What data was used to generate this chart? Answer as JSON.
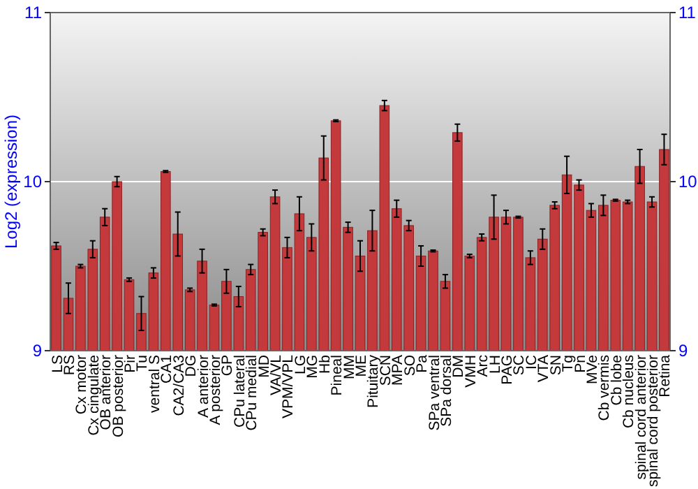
{
  "chart_data": {
    "type": "bar",
    "ylabel": "Log2 (expression)",
    "categories": [
      "LS",
      "RS",
      "Cx motor",
      "Cx cingulate",
      "OB anterior",
      "OB posterior",
      "Pir",
      "Tu",
      "ventral S",
      "CA1",
      "CA2/CA3",
      "DG",
      "A anterior",
      "A posterior",
      "GP",
      "CPu lateral",
      "CPu medial",
      "MD",
      "VA/VL",
      "VPM/VPL",
      "LG",
      "MG",
      "Hb",
      "Pineal",
      "MM",
      "ME",
      "Pituitary",
      "SCN",
      "MPA",
      "SO",
      "Pa",
      "SPa ventral",
      "SPa dorsal",
      "DM",
      "VMH",
      "Arc",
      "LH",
      "PAG",
      "SC",
      "IC",
      "VTA",
      "SN",
      "Tg",
      "Pn",
      "MVe",
      "Cb vermis",
      "Cb lobe",
      "Cb nucleus",
      "spinal cord anterior",
      "spinal cord posterior",
      "Retina"
    ],
    "values": [
      9.62,
      9.31,
      9.5,
      9.6,
      9.79,
      10.0,
      9.42,
      9.22,
      9.46,
      10.06,
      9.69,
      9.36,
      9.53,
      9.27,
      9.41,
      9.32,
      9.48,
      9.7,
      9.91,
      9.61,
      9.81,
      9.67,
      10.14,
      10.36,
      9.73,
      9.56,
      9.71,
      10.45,
      9.84,
      9.74,
      9.56,
      9.59,
      9.41,
      10.29,
      9.56,
      9.67,
      9.79,
      9.79,
      9.79,
      9.55,
      9.66,
      9.86,
      10.04,
      9.98,
      9.83,
      9.86,
      9.89,
      9.88,
      10.09,
      9.88,
      10.19
    ],
    "errors": [
      0.02,
      0.09,
      0.01,
      0.05,
      0.05,
      0.03,
      0.01,
      0.1,
      0.03,
      0.005,
      0.13,
      0.01,
      0.07,
      0.005,
      0.07,
      0.06,
      0.03,
      0.02,
      0.04,
      0.06,
      0.1,
      0.08,
      0.13,
      0.005,
      0.03,
      0.09,
      0.12,
      0.03,
      0.05,
      0.03,
      0.06,
      0.005,
      0.04,
      0.05,
      0.01,
      0.02,
      0.13,
      0.04,
      0.005,
      0.04,
      0.06,
      0.02,
      0.11,
      0.03,
      0.04,
      0.06,
      0.005,
      0.01,
      0.1,
      0.03,
      0.09
    ],
    "color": "#c43a3c",
    "ylim": [
      9,
      11
    ],
    "yticks": [
      9,
      10,
      11
    ],
    "y2lim": [
      9,
      11
    ],
    "y2ticks": [
      9,
      10,
      11
    ],
    "grid": "y"
  }
}
